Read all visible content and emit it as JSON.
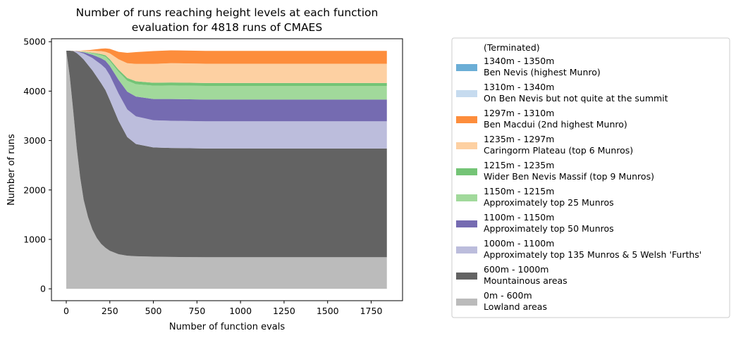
{
  "chart_data": {
    "type": "area",
    "stacked": true,
    "title_lines": [
      "Number of runs reaching height levels at each function",
      "evaluation for 4818 runs of CMAES"
    ],
    "xlabel": "Number of function evals",
    "ylabel": "Number of runs",
    "xlim": [
      -85,
      1930
    ],
    "ylim": [
      -240,
      5060
    ],
    "x_ticks": [
      0,
      250,
      500,
      750,
      1000,
      1250,
      1500,
      1750
    ],
    "y_ticks": [
      0,
      1000,
      2000,
      3000,
      4000,
      5000
    ],
    "grid": false,
    "legend_position": "right-outside",
    "legend_header": "(Terminated)",
    "x": [
      0,
      20,
      40,
      60,
      80,
      100,
      125,
      150,
      175,
      200,
      225,
      250,
      300,
      350,
      400,
      500,
      600,
      800,
      1000,
      1200,
      1400,
      1600,
      1840
    ],
    "series": [
      {
        "name": "0m - 600m",
        "sub": "Lowland areas",
        "color": "#bbbbbb",
        "values": [
          4818,
          4300,
          3600,
          2850,
          2250,
          1800,
          1450,
          1200,
          1030,
          910,
          830,
          770,
          700,
          670,
          660,
          650,
          645,
          640,
          640,
          640,
          640,
          640,
          640
        ]
      },
      {
        "name": "600m - 1000m",
        "sub": "Mountainous areas",
        "color": "#636363",
        "values": [
          0,
          518,
          1210,
          1920,
          2460,
          2840,
          3080,
          3220,
          3260,
          3250,
          3190,
          3050,
          2700,
          2400,
          2270,
          2210,
          2205,
          2200,
          2200,
          2200,
          2200,
          2200,
          2200
        ]
      },
      {
        "name": "1000m - 1100m",
        "sub": "Approximately top 135 Munros & 5 Welsh 'Furths'",
        "color": "#bcbddc",
        "values": [
          0,
          0,
          5,
          35,
          70,
          120,
          185,
          250,
          315,
          380,
          440,
          500,
          550,
          560,
          560,
          550,
          550,
          550,
          550,
          550,
          550,
          550,
          550
        ]
      },
      {
        "name": "1100m - 1150m",
        "sub": "Approximately top 50 Munros",
        "color": "#756bb1",
        "values": [
          0,
          0,
          0,
          5,
          15,
          25,
          45,
          65,
          95,
          125,
          155,
          190,
          280,
          360,
          400,
          430,
          440,
          440,
          440,
          440,
          440,
          440,
          440
        ]
      },
      {
        "name": "1150m - 1215m",
        "sub": "Approximately top 25 Munros",
        "color": "#a1d99b",
        "values": [
          0,
          0,
          0,
          0,
          5,
          10,
          20,
          30,
          45,
          60,
          80,
          100,
          160,
          220,
          250,
          270,
          275,
          275,
          275,
          275,
          275,
          275,
          275
        ]
      },
      {
        "name": "1215m - 1235m",
        "sub": "Wider Ben Nevis Massif (top 9 Munros)",
        "color": "#74c476",
        "values": [
          0,
          0,
          0,
          0,
          0,
          5,
          8,
          12,
          18,
          24,
          30,
          35,
          45,
          55,
          60,
          60,
          60,
          60,
          60,
          60,
          60,
          60,
          60
        ]
      },
      {
        "name": "1235m - 1297m",
        "sub": "Caringorm Plateau (top 6 Munros)",
        "color": "#fdd0a2",
        "values": [
          0,
          0,
          3,
          8,
          18,
          20,
          30,
          40,
          50,
          60,
          70,
          120,
          210,
          300,
          350,
          380,
          390,
          390,
          390,
          390,
          390,
          390,
          390
        ]
      },
      {
        "name": "1297m - 1310m",
        "sub": "Ben Macdui (2nd highest Munro)",
        "color": "#fd8d3c",
        "values": [
          0,
          0,
          0,
          0,
          0,
          5,
          10,
          20,
          35,
          50,
          70,
          90,
          150,
          210,
          240,
          260,
          260,
          260,
          260,
          260,
          260,
          260,
          260
        ]
      },
      {
        "name": "1310m - 1340m",
        "sub": "On Ben Nevis but not quite at the summit",
        "color": "#c6dbef",
        "values": [
          0,
          0,
          0,
          0,
          0,
          0,
          0,
          0,
          0,
          0,
          0,
          0,
          0,
          0,
          0,
          0,
          0,
          0,
          0,
          0,
          0,
          0,
          0
        ]
      },
      {
        "name": "1340m - 1350m",
        "sub": "Ben Nevis (highest Munro)",
        "color": "#6baed6",
        "values": [
          0,
          0,
          0,
          0,
          0,
          0,
          0,
          0,
          0,
          0,
          0,
          0,
          0,
          0,
          0,
          0,
          0,
          0,
          0,
          0,
          0,
          0,
          0
        ]
      },
      {
        "name": "(Terminated)",
        "sub": "",
        "color": "#ffffff",
        "values": [
          0,
          0,
          0,
          0,
          0,
          0,
          0,
          0,
          0,
          0,
          0,
          0,
          0,
          0,
          0,
          0,
          0,
          0,
          0,
          0,
          0,
          0,
          0
        ]
      }
    ]
  }
}
